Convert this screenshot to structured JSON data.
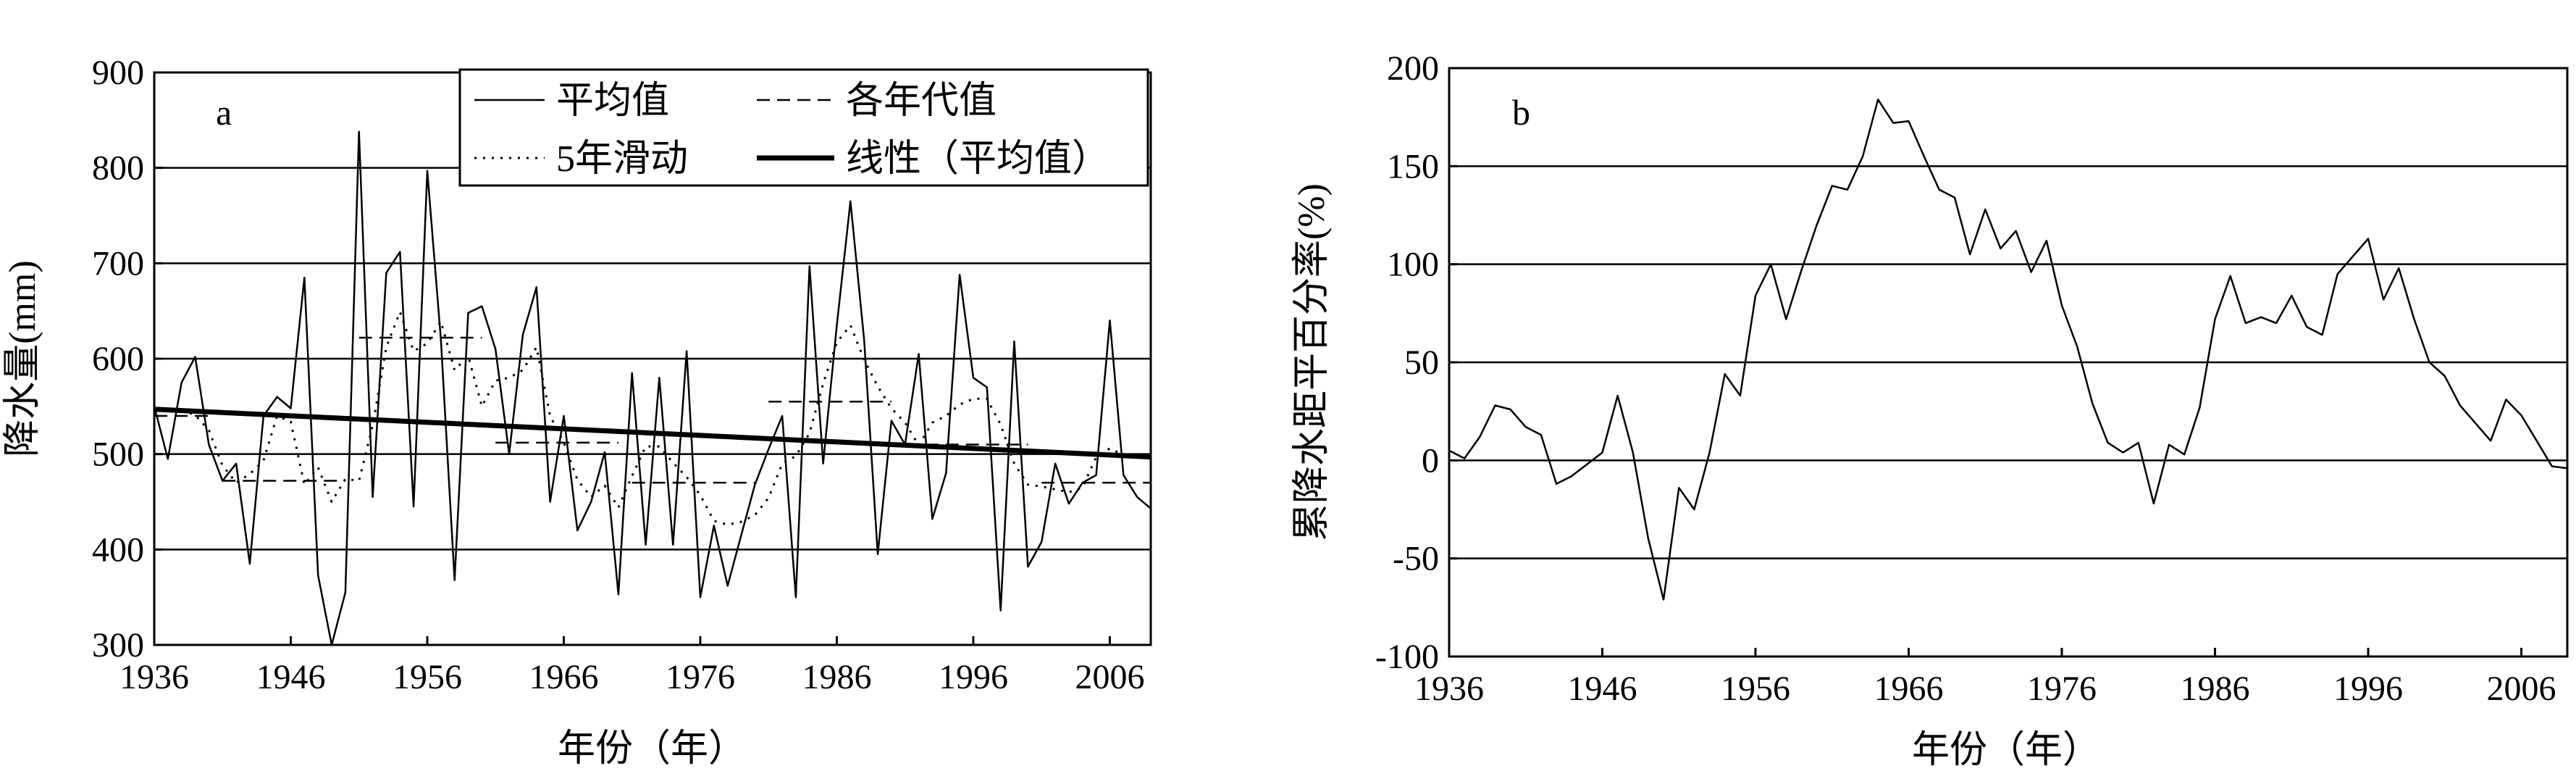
{
  "chart_data": [
    {
      "type": "line",
      "panel_label": "a",
      "xlabel": "年份（年）",
      "ylabel": "降水量(mm)",
      "xlim": [
        1936,
        2009
      ],
      "ylim": [
        300,
        900
      ],
      "xticks": [
        "1936",
        "1946",
        "1956",
        "1966",
        "1976",
        "1986",
        "1996",
        "2006"
      ],
      "yticks": [
        "300",
        "400",
        "500",
        "600",
        "700",
        "800",
        "900"
      ],
      "grid": "horizontal",
      "legend_position": "top-right",
      "series": [
        {
          "name": "平均值",
          "style": "solid-thin",
          "x": [
            1936,
            1937,
            1938,
            1939,
            1940,
            1941,
            1942,
            1943,
            1944,
            1945,
            1946,
            1947,
            1948,
            1949,
            1950,
            1951,
            1952,
            1953,
            1954,
            1955,
            1956,
            1957,
            1958,
            1959,
            1960,
            1961,
            1962,
            1963,
            1964,
            1965,
            1966,
            1967,
            1968,
            1969,
            1970,
            1971,
            1972,
            1973,
            1974,
            1975,
            1976,
            1977,
            1978,
            1979,
            1980,
            1981,
            1982,
            1983,
            1984,
            1985,
            1986,
            1987,
            1988,
            1989,
            1990,
            1991,
            1992,
            1993,
            1994,
            1995,
            1996,
            1997,
            1998,
            1999,
            2000,
            2001,
            2002,
            2003,
            2004,
            2005,
            2006,
            2007,
            2008,
            2009
          ],
          "values": [
            550,
            495,
            575,
            602,
            510,
            472,
            490,
            385,
            540,
            560,
            548,
            685,
            373,
            300,
            355,
            838,
            455,
            690,
            712,
            445,
            797,
            620,
            368,
            648,
            655,
            610,
            500,
            625,
            675,
            450,
            540,
            420,
            450,
            502,
            353,
            585,
            405,
            580,
            405,
            608,
            350,
            425,
            362,
            415,
            468,
            505,
            540,
            350,
            697,
            490,
            635,
            765,
            620,
            395,
            535,
            510,
            605,
            432,
            480,
            688,
            580,
            570,
            336,
            618,
            382,
            408,
            490,
            448,
            470,
            478,
            640,
            478,
            455,
            443
          ]
        },
        {
          "name": "5年滑动",
          "style": "dotted",
          "x": [
            1938,
            1939,
            1940,
            1941,
            1942,
            1943,
            1944,
            1945,
            1946,
            1947,
            1948,
            1949,
            1950,
            1951,
            1952,
            1953,
            1954,
            1955,
            1956,
            1957,
            1958,
            1959,
            1960,
            1961,
            1962,
            1963,
            1964,
            1965,
            1966,
            1967,
            1968,
            1969,
            1970,
            1971,
            1972,
            1973,
            1974,
            1975,
            1976,
            1977,
            1978,
            1979,
            1980,
            1981,
            1982,
            1983,
            1984,
            1985,
            1986,
            1987,
            1988,
            1989,
            1990,
            1991,
            1992,
            1993,
            1994,
            1995,
            1996,
            1997,
            1998,
            1999,
            2000,
            2001,
            2002,
            2003,
            2004,
            2005,
            2006,
            2007
          ],
          "values": [
            546,
            541,
            525,
            488,
            470,
            479,
            493,
            540,
            534,
            468,
            486,
            450,
            474,
            472,
            530,
            612,
            649,
            608,
            616,
            639,
            588,
            603,
            550,
            577,
            580,
            588,
            612,
            540,
            512,
            473,
            455,
            467,
            444,
            477,
            508,
            508,
            491,
            476,
            457,
            430,
            426,
            429,
            436,
            454,
            490,
            498,
            522,
            574,
            617,
            635,
            599,
            571,
            548,
            533,
            509,
            533,
            540,
            552,
            558,
            558,
            531,
            490,
            468,
            466,
            463,
            460,
            465,
            497,
            506,
            499
          ]
        },
        {
          "name": "各年代值",
          "style": "dashed",
          "segments": [
            {
              "x": [
                1936,
                1940
              ],
              "value": 540
            },
            {
              "x": [
                1941,
                1950
              ],
              "value": 472
            },
            {
              "x": [
                1951,
                1960
              ],
              "value": 622
            },
            {
              "x": [
                1961,
                1970
              ],
              "value": 512
            },
            {
              "x": [
                1971,
                1980
              ],
              "value": 470
            },
            {
              "x": [
                1981,
                1990
              ],
              "value": 555
            },
            {
              "x": [
                1991,
                2000
              ],
              "value": 510
            },
            {
              "x": [
                2001,
                2009
              ],
              "value": 470
            }
          ]
        },
        {
          "name": "线性（平均值）",
          "style": "solid-thick",
          "x": [
            1936,
            2009
          ],
          "values": [
            547,
            497
          ]
        }
      ]
    },
    {
      "type": "line",
      "panel_label": "b",
      "xlabel": "年份（年）",
      "ylabel": "累降水距平百分率(%)",
      "xlim": [
        1936,
        2009
      ],
      "ylim": [
        -100,
        200
      ],
      "xticks": [
        "1936",
        "1946",
        "1956",
        "1966",
        "1976",
        "1986",
        "1996",
        "2006"
      ],
      "yticks": [
        "-100",
        "-50",
        "0",
        "50",
        "100",
        "150",
        "200"
      ],
      "grid": "horizontal",
      "series": [
        {
          "name": "",
          "x": [
            1936,
            1937,
            1938,
            1939,
            1940,
            1941,
            1942,
            1943,
            1944,
            1945,
            1946,
            1947,
            1948,
            1949,
            1950,
            1951,
            1952,
            1953,
            1954,
            1955,
            1956,
            1957,
            1958,
            1959,
            1960,
            1961,
            1962,
            1963,
            1964,
            1965,
            1966,
            1967,
            1968,
            1969,
            1970,
            1971,
            1972,
            1973,
            1974,
            1975,
            1976,
            1977,
            1978,
            1979,
            1980,
            1981,
            1982,
            1983,
            1984,
            1985,
            1986,
            1987,
            1988,
            1989,
            1990,
            1991,
            1992,
            1993,
            1994,
            1995,
            1996,
            1997,
            1998,
            1999,
            2000,
            2001,
            2002,
            2003,
            2004,
            2005,
            2006,
            2007,
            2008,
            2009
          ],
          "values": [
            5,
            1,
            12,
            28,
            26,
            17,
            13,
            -12,
            -8,
            -2,
            4,
            33,
            4,
            -40,
            -71,
            -14,
            -25,
            4,
            44,
            33,
            84,
            100,
            72,
            97,
            120,
            140,
            138,
            155,
            184,
            172,
            173,
            155,
            138,
            134,
            105,
            128,
            108,
            117,
            96,
            112,
            79,
            58,
            29,
            9,
            4,
            9,
            -22,
            8,
            3,
            27,
            72,
            94,
            70,
            73,
            70,
            84,
            68,
            64,
            95,
            104,
            113,
            82,
            98,
            72,
            50,
            43,
            28,
            19,
            10,
            31,
            23,
            10,
            -3,
            -4
          ]
        }
      ]
    }
  ]
}
